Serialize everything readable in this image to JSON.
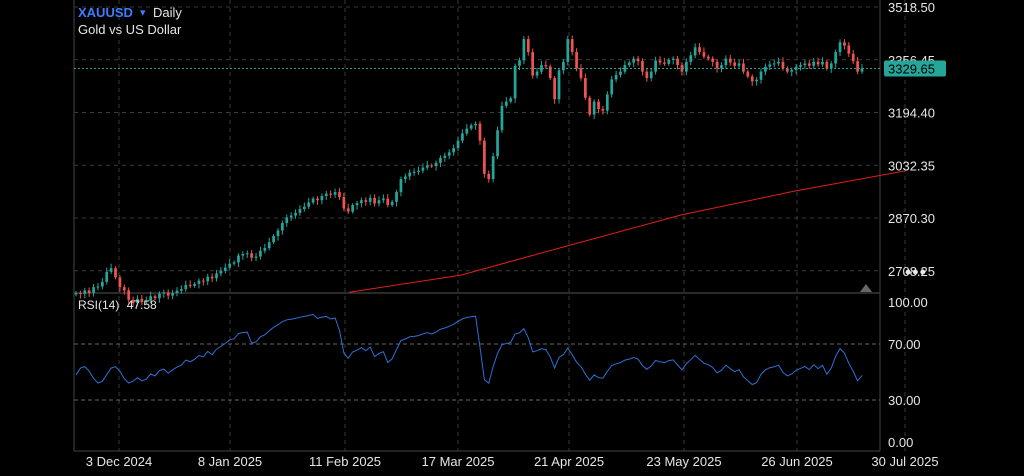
{
  "header": {
    "symbol": "XAUUSD",
    "caret": "▾",
    "interval": "Daily",
    "subtitle": "Gold vs US Dollar"
  },
  "rsi": {
    "label": "RSI(14)",
    "value": "47.58"
  },
  "more_label": "•••",
  "colors": {
    "up": "#26a69a",
    "down": "#ef5350",
    "ma": "#e0201c",
    "rsi": "#2f6fd6",
    "price_badge": "#26a69a",
    "grid": "#3a3a3a"
  },
  "chart_data": [
    {
      "type": "candlestick",
      "symbol": "XAUUSD",
      "timeframe": "Daily",
      "title": "Gold vs US Dollar",
      "x_ticks": [
        "3 Dec 2024",
        "8 Jan 2025",
        "11 Feb 2025",
        "17 Mar 2025",
        "21 Apr 2025",
        "23 May 2025",
        "26 Jun 2025",
        "30 Jul 2025"
      ],
      "y_ticks": [
        "3518.50",
        "3356.45",
        "3194.40",
        "3032.35",
        "2870.30",
        "2708.25"
      ],
      "ylim": [
        2640,
        3540
      ],
      "last_price": "3329.65",
      "ma_line": [
        {
          "date": "2025-02-11",
          "value": 2642
        },
        {
          "date": "2025-03-17",
          "value": 2695
        },
        {
          "date": "2025-04-21",
          "value": 2792
        },
        {
          "date": "2025-05-23",
          "value": 2880
        },
        {
          "date": "2025-06-26",
          "value": 2952
        },
        {
          "date": "2025-07-30",
          "value": 3015
        }
      ],
      "closes": [
        2640,
        2637,
        2648,
        2640,
        2658,
        2660,
        2674,
        2705,
        2716,
        2688,
        2658,
        2648,
        2619,
        2609,
        2622,
        2612,
        2616,
        2630,
        2624,
        2638,
        2642,
        2632,
        2640,
        2647,
        2652,
        2665,
        2662,
        2668,
        2678,
        2676,
        2690,
        2685,
        2700,
        2708,
        2718,
        2730,
        2734,
        2755,
        2760,
        2762,
        2748,
        2752,
        2770,
        2778,
        2796,
        2815,
        2832,
        2855,
        2872,
        2878,
        2886,
        2898,
        2905,
        2918,
        2930,
        2925,
        2938,
        2945,
        2942,
        2950,
        2935,
        2900,
        2890,
        2910,
        2916,
        2925,
        2920,
        2932,
        2915,
        2925,
        2930,
        2910,
        2920,
        2950,
        2990,
        2998,
        3010,
        3012,
        3016,
        3025,
        3032,
        3030,
        3040,
        3055,
        3062,
        3072,
        3085,
        3108,
        3130,
        3145,
        3155,
        3160,
        3108,
        3006,
        2990,
        3060,
        3140,
        3215,
        3228,
        3238,
        3338,
        3355,
        3420,
        3380,
        3308,
        3320,
        3340,
        3336,
        3300,
        3235,
        3324,
        3350,
        3420,
        3380,
        3330,
        3300,
        3240,
        3188,
        3228,
        3205,
        3200,
        3250,
        3296,
        3310,
        3320,
        3340,
        3348,
        3360,
        3352,
        3320,
        3300,
        3320,
        3354,
        3348,
        3344,
        3356,
        3360,
        3340,
        3320,
        3350,
        3370,
        3395,
        3380,
        3366,
        3360,
        3350,
        3330,
        3340,
        3360,
        3348,
        3338,
        3345,
        3320,
        3305,
        3290,
        3295,
        3320,
        3335,
        3342,
        3345,
        3350,
        3330,
        3320,
        3325,
        3335,
        3340,
        3345,
        3338,
        3350,
        3342,
        3350,
        3330,
        3345,
        3380,
        3410,
        3400,
        3375,
        3352,
        3320,
        3329.65
      ]
    },
    {
      "type": "line",
      "title": "RSI(14)",
      "current": 47.58,
      "y_ticks": [
        "100.00",
        "70.00",
        "30.00",
        "0.00"
      ],
      "ylim": [
        0,
        100
      ],
      "x_ticks": [
        "3 Dec 2024",
        "8 Jan 2025",
        "11 Feb 2025",
        "17 Mar 2025",
        "21 Apr 2025",
        "23 May 2025",
        "26 Jun 2025",
        "30 Jul 2025"
      ]
    }
  ]
}
